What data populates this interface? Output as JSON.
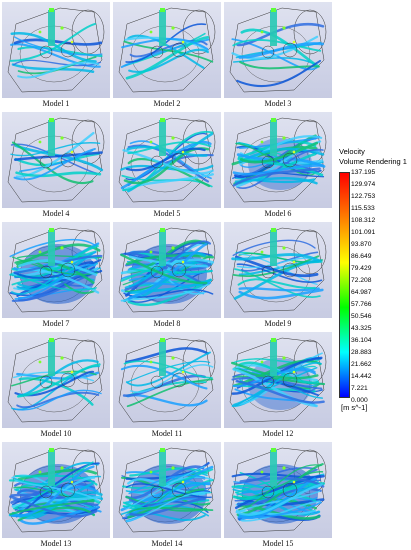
{
  "models": [
    {
      "label": "Model 1",
      "style": "sparse"
    },
    {
      "label": "Model 2",
      "style": "sparse"
    },
    {
      "label": "Model 3",
      "style": "sparse"
    },
    {
      "label": "Model 4",
      "style": "sparse"
    },
    {
      "label": "Model 5",
      "style": "medium"
    },
    {
      "label": "Model 6",
      "style": "dense"
    },
    {
      "label": "Model 7",
      "style": "full"
    },
    {
      "label": "Model 8",
      "style": "full"
    },
    {
      "label": "Model 9",
      "style": "medium"
    },
    {
      "label": "Model 10",
      "style": "sparse"
    },
    {
      "label": "Model 11",
      "style": "sparse"
    },
    {
      "label": "Model 12",
      "style": "dense"
    },
    {
      "label": "Model 13",
      "style": "full"
    },
    {
      "label": "Model 14",
      "style": "full"
    },
    {
      "label": "Model 15",
      "style": "full"
    }
  ],
  "legend": {
    "title_line1": "Velocity",
    "title_line2": "Volume Rendering 1",
    "unit": "[m s^-1]",
    "ticks": [
      "137.195",
      "129.974",
      "122.753",
      "115.533",
      "108.312",
      "101.091",
      "93.870",
      "86.649",
      "79.429",
      "72.208",
      "64.987",
      "57.766",
      "50.546",
      "43.325",
      "36.104",
      "28.883",
      "21.662",
      "14.442",
      "7.221",
      "0.000"
    ],
    "colors": [
      "#ff0000",
      "#ff7f00",
      "#ffff00",
      "#00ff00",
      "#00ffff",
      "#0000ff"
    ]
  }
}
